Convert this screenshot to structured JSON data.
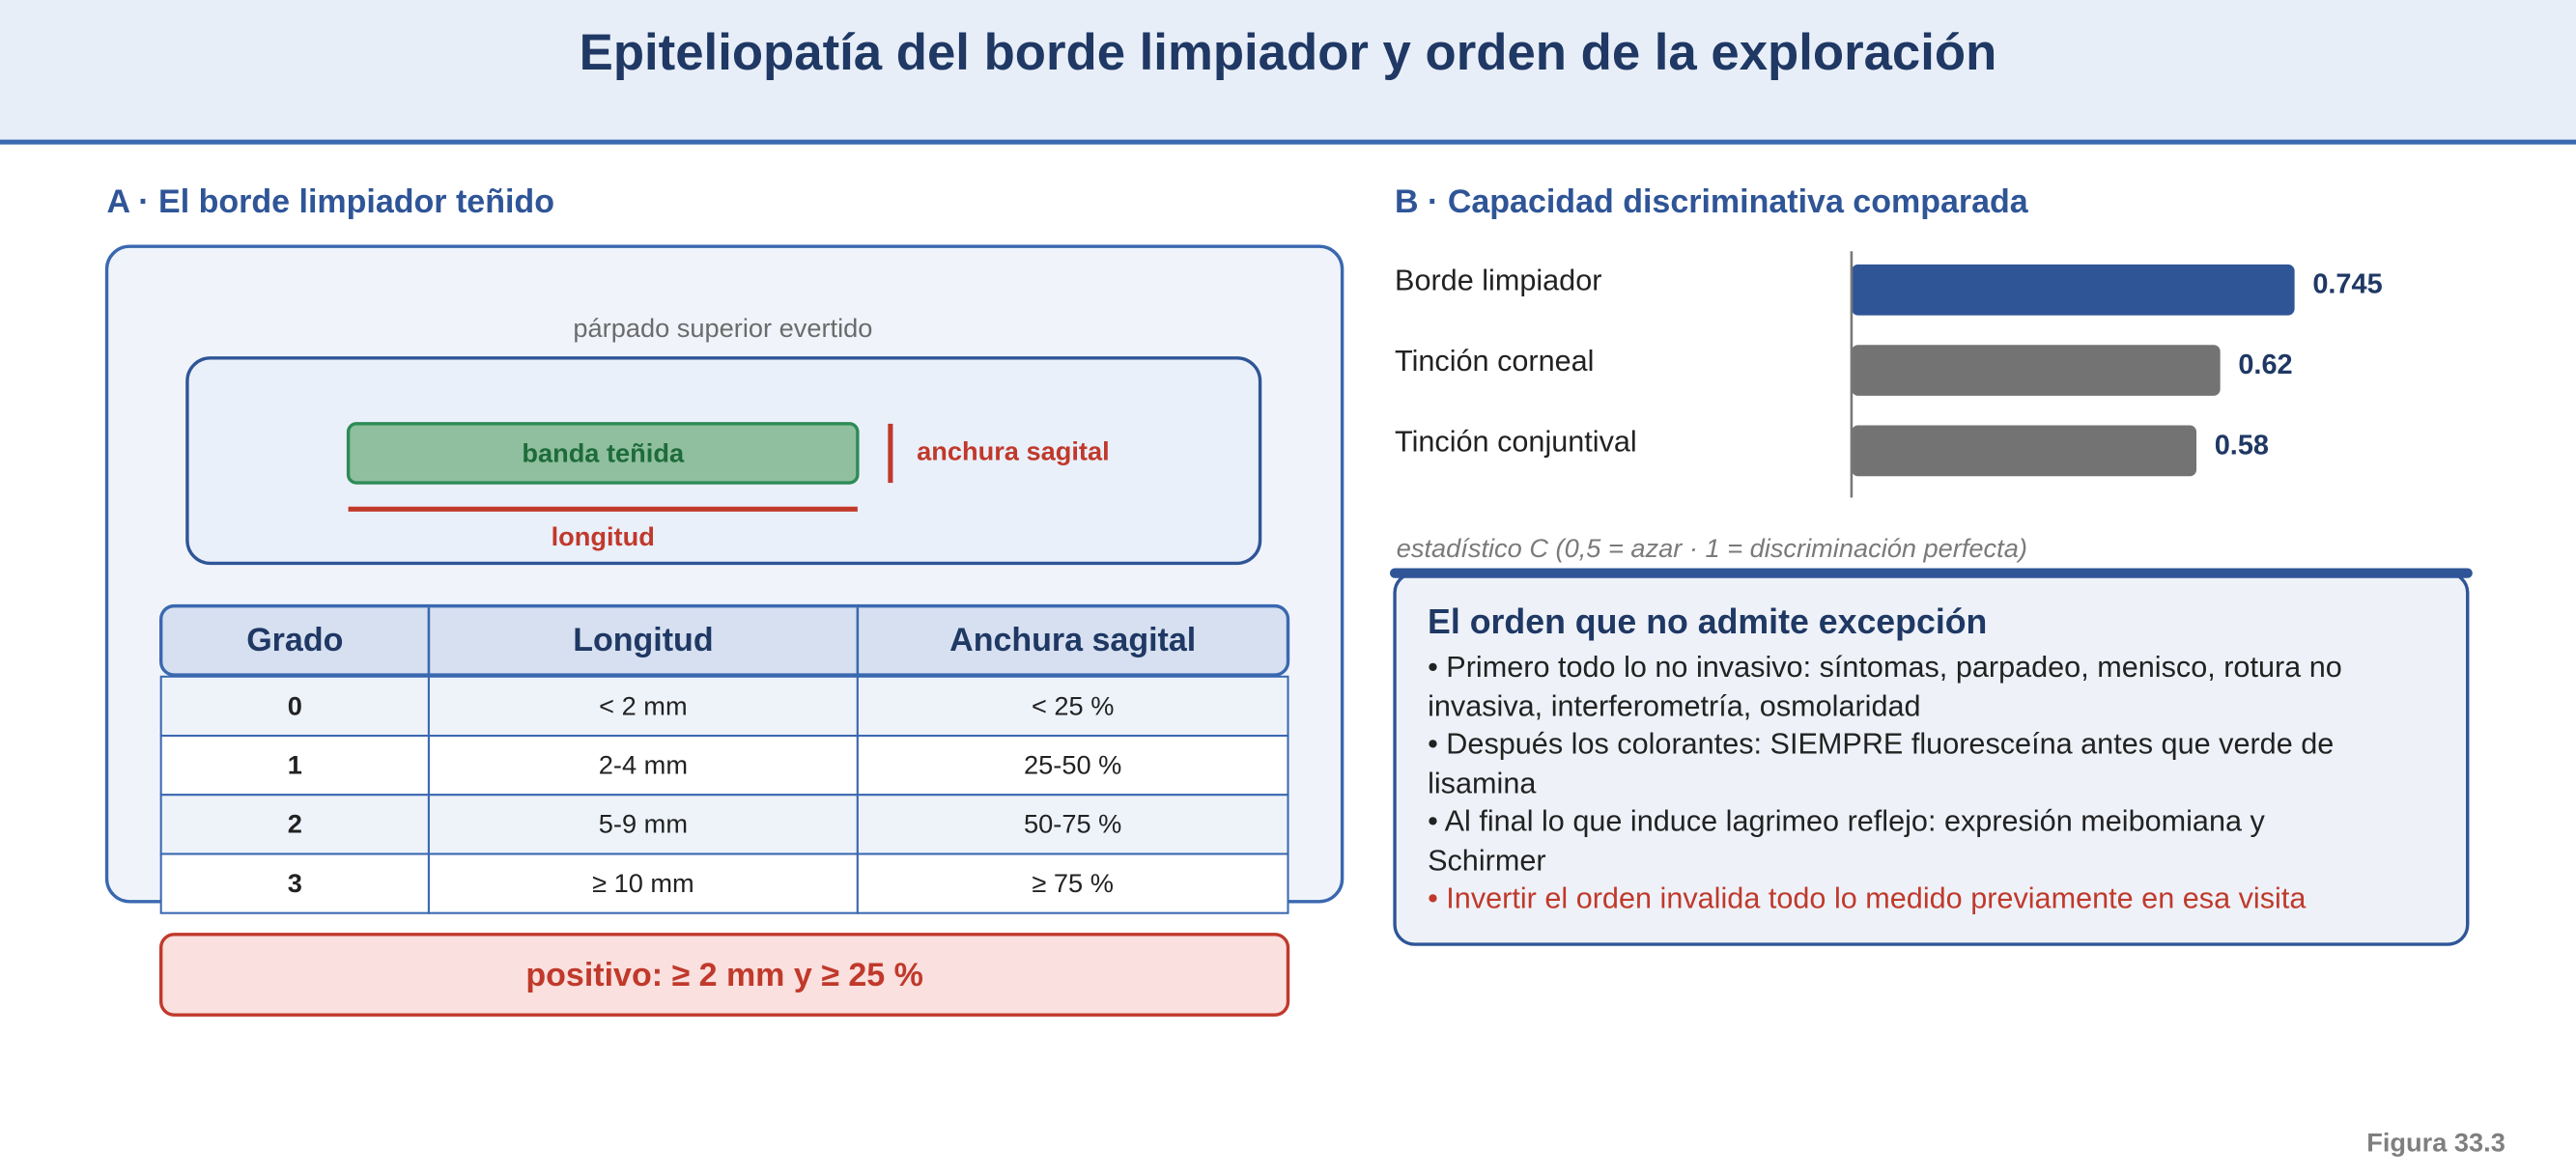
{
  "title": "Epiteliopatía del borde limpiador y orden de la exploración",
  "panel_a": {
    "title": "A · El borde limpiador teñido",
    "eyelid_label": "párpado superior evertido",
    "band_label": "banda teñida",
    "width_label": "anchura sagital",
    "length_label": "longitud",
    "table": {
      "header": [
        "Grado",
        "Longitud",
        "Anchura sagital"
      ],
      "rows": [
        [
          "0",
          "< 2 mm",
          "< 25 %"
        ],
        [
          "1",
          "2-4 mm",
          "25-50 %"
        ],
        [
          "2",
          "5-9 mm",
          "50-75 %"
        ],
        [
          "3",
          "≥ 10 mm",
          "≥ 75 %"
        ]
      ]
    },
    "positive": "positivo: ≥ 2 mm y ≥ 25 %"
  },
  "chart_data": {
    "type": "hbar",
    "title": "B · Capacidad discriminativa comparada",
    "categories": [
      "Borde limpiador",
      "Tinción corneal",
      "Tinción conjuntival"
    ],
    "values": [
      0.745,
      0.62,
      0.58
    ],
    "colors": [
      "#2f5597",
      "#737373",
      "#737373"
    ],
    "xlim": [
      0,
      1
    ],
    "xlabel": "estadístico C (0,5 = azar · 1 = discriminación perfecta)"
  },
  "box": {
    "title": "El orden que no admite excepción",
    "bullets": [
      {
        "text": "• Primero todo lo no invasivo: síntomas, parpadeo, menisco, rotura no invasiva, interferometría, osmolaridad",
        "color": "#222222"
      },
      {
        "text": "• Después los colorantes: SIEMPRE fluoresceína antes que verde de lisamina",
        "color": "#222222"
      },
      {
        "text": "• Al final lo que induce lagrimeo reflejo: expresión meibomiana y Schirmer",
        "color": "#222222"
      },
      {
        "text": "• Invertir el orden invalida todo lo medido previamente en esa visita",
        "color": "#c0392b"
      }
    ]
  },
  "figure_label": "Figura 33.3"
}
